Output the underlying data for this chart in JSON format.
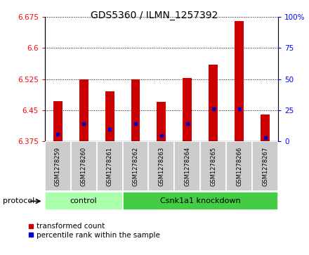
{
  "title": "GDS5360 / ILMN_1257392",
  "samples": [
    "GSM1278259",
    "GSM1278260",
    "GSM1278261",
    "GSM1278262",
    "GSM1278263",
    "GSM1278264",
    "GSM1278265",
    "GSM1278266",
    "GSM1278267"
  ],
  "red_values": [
    6.472,
    6.525,
    6.495,
    6.525,
    6.47,
    6.527,
    6.56,
    6.665,
    6.44
  ],
  "blue_values": [
    6.392,
    6.418,
    6.405,
    6.418,
    6.39,
    6.418,
    6.453,
    6.453,
    6.385
  ],
  "y_min": 6.375,
  "y_max": 6.675,
  "y_ticks": [
    6.375,
    6.45,
    6.525,
    6.6,
    6.675
  ],
  "y2_ticks": [
    0,
    25,
    50,
    75,
    100
  ],
  "bar_color": "#cc0000",
  "dot_color": "#0000cc",
  "control_samples": 3,
  "control_label": "control",
  "treatment_label": "Csnk1a1 knockdown",
  "control_bg": "#aaffaa",
  "treatment_bg": "#44cc44",
  "protocol_label": "protocol",
  "legend1": "transformed count",
  "legend2": "percentile rank within the sample",
  "bar_width": 0.35,
  "baseline": 6.375
}
